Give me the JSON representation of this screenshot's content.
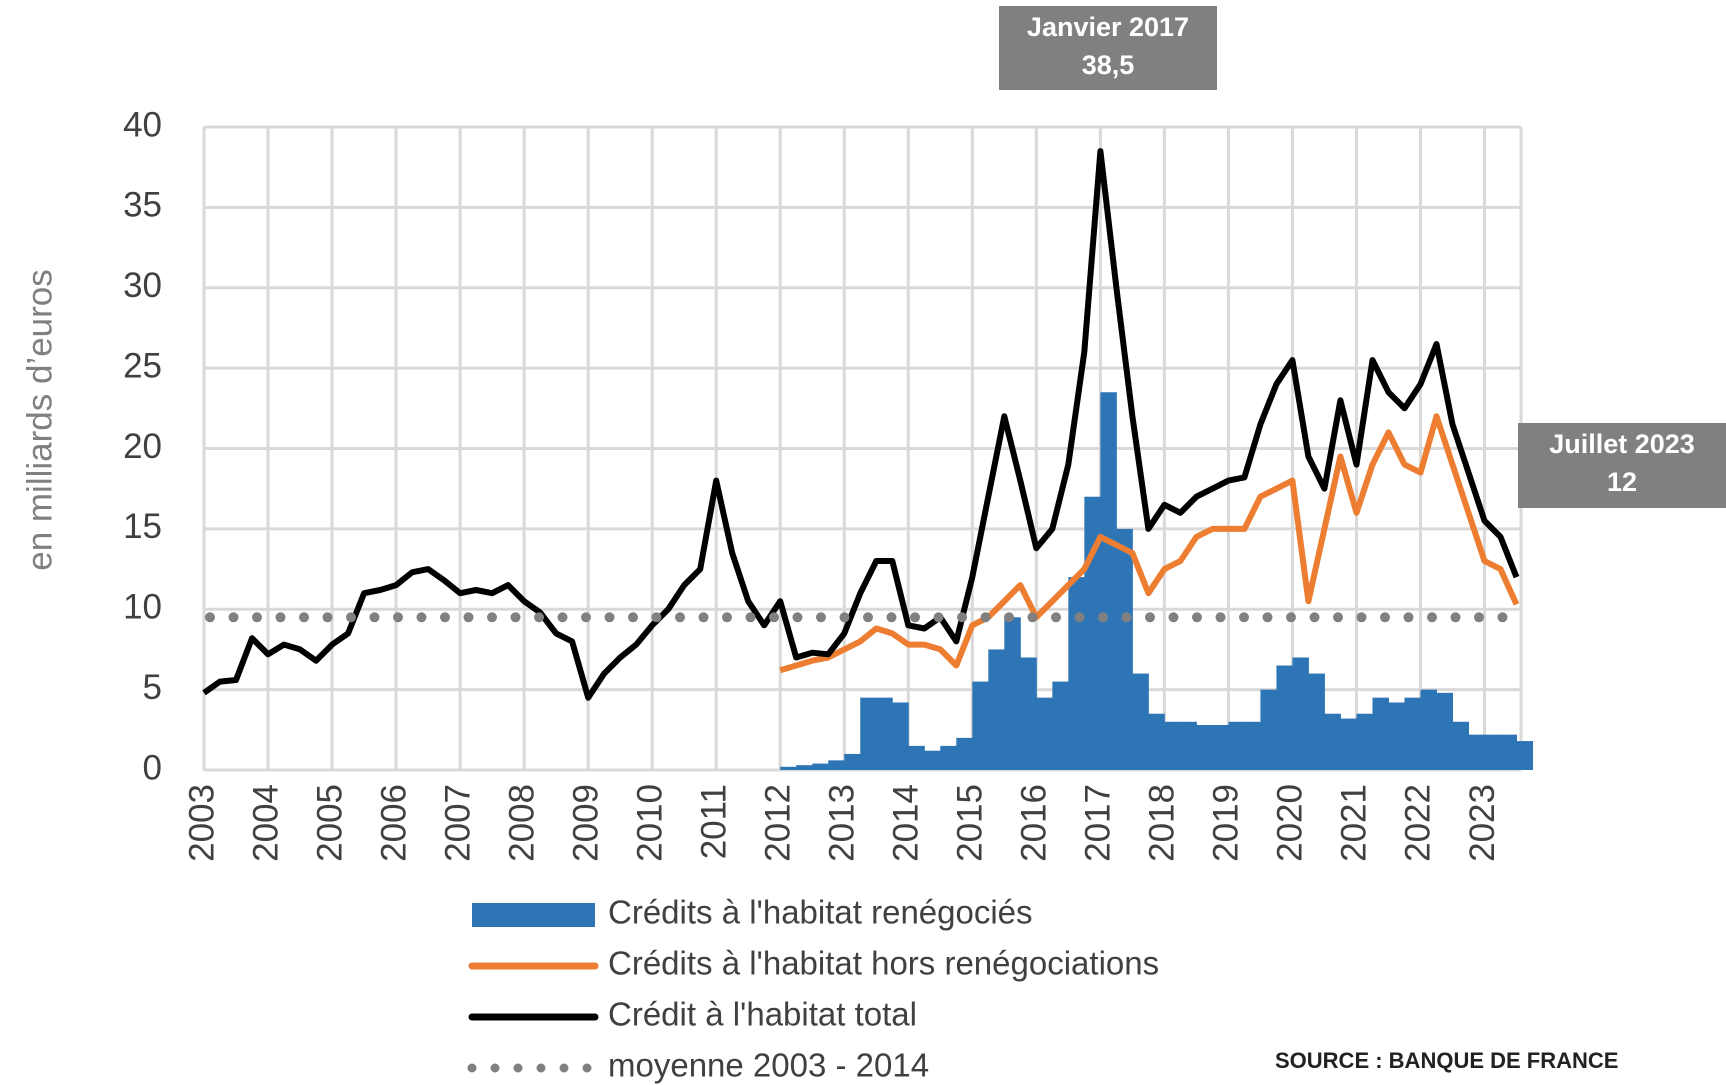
{
  "chart_data": {
    "type": "combo",
    "y_label": "en milliards d’euros",
    "source": "SOURCE : BANQUE DE FRANCE",
    "annotations": [
      {
        "lines": [
          "Janvier 2017",
          "38,5"
        ],
        "x": 2017.0,
        "y": 38.5
      },
      {
        "lines": [
          "Juillet 2023",
          "12"
        ],
        "x": 2023.5,
        "y": 12
      }
    ],
    "xlim": [
      2003,
      2023.57
    ],
    "xticks": [
      2003,
      2004,
      2005,
      2006,
      2007,
      2008,
      2009,
      2010,
      2011,
      2012,
      2013,
      2014,
      2015,
      2016,
      2017,
      2018,
      2019,
      2020,
      2021,
      2022,
      2023
    ],
    "ylim": [
      0,
      40
    ],
    "yticks": [
      0,
      5,
      10,
      15,
      20,
      25,
      30,
      35,
      40
    ],
    "grid": true,
    "x": [
      2003,
      2003.25,
      2003.5,
      2003.75,
      2004,
      2004.25,
      2004.5,
      2004.75,
      2005,
      2005.25,
      2005.5,
      2005.75,
      2006,
      2006.25,
      2006.5,
      2006.75,
      2007,
      2007.25,
      2007.5,
      2007.75,
      2008,
      2008.25,
      2008.5,
      2008.75,
      2009,
      2009.25,
      2009.5,
      2009.75,
      2010,
      2010.25,
      2010.5,
      2010.75,
      2011,
      2011.25,
      2011.5,
      2011.75,
      2012,
      2012.25,
      2012.5,
      2012.75,
      2013,
      2013.25,
      2013.5,
      2013.75,
      2014,
      2014.25,
      2014.5,
      2014.75,
      2015,
      2015.25,
      2015.5,
      2015.75,
      2016,
      2016.25,
      2016.5,
      2016.75,
      2017,
      2017.25,
      2017.5,
      2017.75,
      2018,
      2018.25,
      2018.5,
      2018.75,
      2019,
      2019.25,
      2019.5,
      2019.75,
      2020,
      2020.25,
      2020.5,
      2020.75,
      2021,
      2021.25,
      2021.5,
      2021.75,
      2022,
      2022.25,
      2022.5,
      2022.75,
      2023,
      2023.25,
      2023.5
    ],
    "series": [
      {
        "name": "Crédits à l'habitat renégociés",
        "type": "bar",
        "color": "#2e75b6",
        "values": [
          null,
          null,
          null,
          null,
          null,
          null,
          null,
          null,
          null,
          null,
          null,
          null,
          null,
          null,
          null,
          null,
          null,
          null,
          null,
          null,
          null,
          null,
          null,
          null,
          null,
          null,
          null,
          null,
          null,
          null,
          null,
          null,
          null,
          null,
          null,
          null,
          0.2,
          0.3,
          0.4,
          0.6,
          1.0,
          4.5,
          4.5,
          4.2,
          1.5,
          1.2,
          1.5,
          2.0,
          5.5,
          7.5,
          9.5,
          7.0,
          4.5,
          5.5,
          12.0,
          17.0,
          23.5,
          15.0,
          6.0,
          3.5,
          3.0,
          3.0,
          2.8,
          2.8,
          3.0,
          3.0,
          5.0,
          6.5,
          7.0,
          6.0,
          3.5,
          3.2,
          3.5,
          4.5,
          4.2,
          4.5,
          5.0,
          4.8,
          3.0,
          2.2,
          2.2,
          2.2,
          1.8
        ]
      },
      {
        "name": "Crédits à l'habitat hors renégociations",
        "type": "line",
        "color": "#ed7d31",
        "values": [
          null,
          null,
          null,
          null,
          null,
          null,
          null,
          null,
          null,
          null,
          null,
          null,
          null,
          null,
          null,
          null,
          null,
          null,
          null,
          null,
          null,
          null,
          null,
          null,
          null,
          null,
          null,
          null,
          null,
          null,
          null,
          null,
          null,
          null,
          null,
          null,
          6.2,
          6.5,
          6.8,
          7.0,
          7.5,
          8.0,
          8.8,
          8.5,
          7.8,
          7.8,
          7.5,
          6.5,
          9.0,
          9.5,
          10.5,
          11.5,
          9.5,
          10.5,
          11.5,
          12.5,
          14.5,
          14.0,
          13.5,
          11.0,
          12.5,
          13.0,
          14.5,
          15.0,
          15.0,
          15.0,
          17.0,
          17.5,
          18.0,
          10.5,
          15.0,
          19.5,
          16.0,
          19.0,
          21.0,
          19.0,
          18.5,
          22.0,
          19.0,
          16.0,
          13.0,
          12.5,
          10.3
        ]
      },
      {
        "name": "Crédit à l'habitat total",
        "type": "line",
        "color": "#000000",
        "values": [
          4.8,
          5.5,
          5.6,
          8.2,
          7.2,
          7.8,
          7.5,
          6.8,
          7.8,
          8.5,
          11.0,
          11.2,
          11.5,
          12.3,
          12.5,
          11.8,
          11.0,
          11.2,
          11.0,
          11.5,
          10.5,
          9.8,
          8.5,
          8.0,
          4.5,
          6.0,
          7.0,
          7.8,
          9.0,
          10.0,
          11.5,
          12.5,
          18.0,
          13.5,
          10.5,
          9.0,
          10.5,
          7.0,
          7.3,
          7.2,
          8.5,
          11.0,
          13.0,
          13.0,
          9.0,
          8.8,
          9.5,
          8.0,
          12.0,
          17.0,
          22.0,
          18.0,
          13.8,
          15.0,
          19.0,
          26.0,
          38.5,
          30.0,
          22.0,
          15.0,
          16.5,
          16.0,
          17.0,
          17.5,
          18.0,
          18.2,
          21.5,
          24.0,
          25.5,
          19.5,
          17.5,
          23.0,
          19.0,
          25.5,
          23.5,
          22.5,
          24.0,
          26.5,
          21.5,
          18.5,
          15.5,
          14.5,
          12.0
        ]
      },
      {
        "name": "moyenne 2003 - 2014",
        "type": "hline",
        "color": "#808080",
        "value": 9.5
      }
    ]
  }
}
